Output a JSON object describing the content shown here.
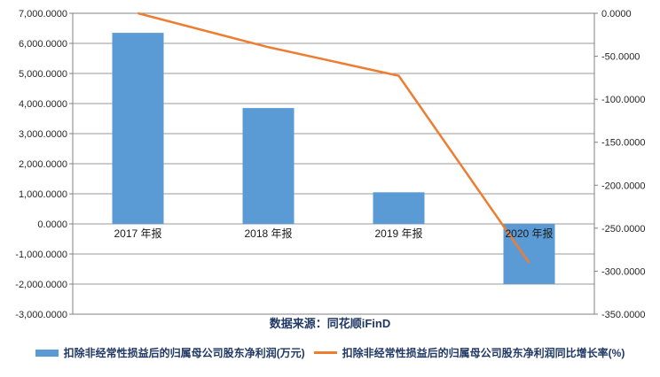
{
  "chart_data": {
    "type": "bar",
    "subtype": "combo-bar-line",
    "title": "",
    "categories": [
      "2017 年报",
      "2018 年报",
      "2019 年报",
      "2020 年报"
    ],
    "series": [
      {
        "name": "扣除非经常性损益后的归属母公司股东净利润(万元)",
        "type": "bar",
        "axis": "left",
        "color": "#5B9BD5",
        "values": [
          6350,
          3850,
          1050,
          -2000
        ]
      },
      {
        "name": "扣除非经常性损益后的归属母公司股东净利润同比增长率(%)",
        "type": "line",
        "axis": "right",
        "color": "#ED7D31",
        "values": [
          0,
          -39.4,
          -72.7,
          -290.5
        ]
      }
    ],
    "left_axis": {
      "max": 7000,
      "min": -3000,
      "step": 1000,
      "tick_labels": [
        "7,000.0000",
        "6,000.0000",
        "5,000.0000",
        "4,000.0000",
        "3,000.0000",
        "2,000.0000",
        "1,000.0000",
        "0.0000",
        "-1,000.0000",
        "-2,000.0000",
        "-3,000.0000"
      ]
    },
    "right_axis": {
      "max": 0,
      "min": -350,
      "step": 50,
      "tick_labels": [
        "0.0000",
        "-50.0000",
        "-100.0000",
        "-150.0000",
        "-200.0000",
        "-250.0000",
        "-300.0000",
        "-350.0000"
      ]
    },
    "grid": true,
    "legend_position": "bottom",
    "source": "数据来源：同花顺iFinD",
    "styles": {
      "axis_text": "#262626",
      "category_text": "#1a1a1a",
      "legend_text": "#1F3864",
      "grid_color": "#999999",
      "border_color": "#808080",
      "background": "#ffffff"
    }
  }
}
